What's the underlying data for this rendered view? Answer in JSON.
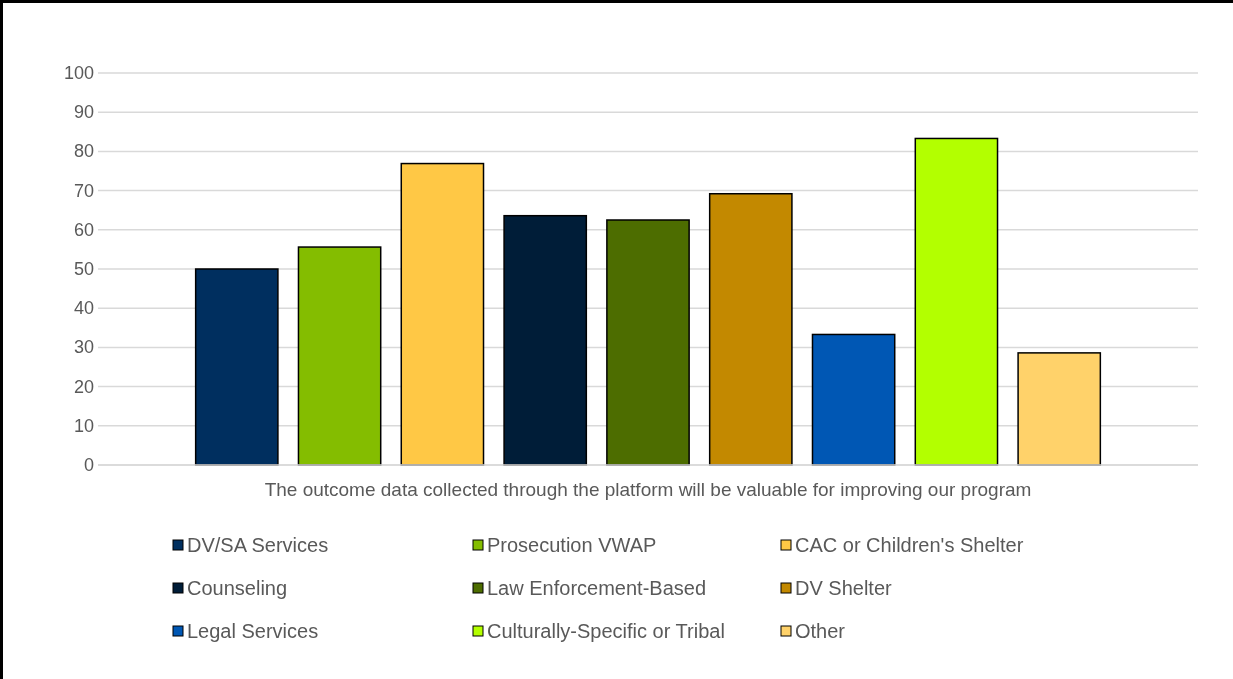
{
  "chart_data": {
    "type": "bar",
    "categories": [
      "The outcome data collected through the platform will be valuable for improving our program"
    ],
    "series": [
      {
        "name": "DV/SA Services",
        "color": "#002f5f",
        "values": [
          50
        ]
      },
      {
        "name": "Prosecution VWAP",
        "color": "#84bd00",
        "values": [
          55.6
        ]
      },
      {
        "name": "CAC or Children's Shelter",
        "color": "#ffc845",
        "values": [
          76.9
        ]
      },
      {
        "name": "Counseling",
        "color": "#001d38",
        "values": [
          63.6
        ]
      },
      {
        "name": "Law Enforcement-Based",
        "color": "#4d6d00",
        "values": [
          62.5
        ]
      },
      {
        "name": "DV Shelter",
        "color": "#c38900",
        "values": [
          69.2
        ]
      },
      {
        "name": "Legal Services",
        "color": "#0057b4",
        "values": [
          33.3
        ]
      },
      {
        "name": "Culturally-Specific or Tribal",
        "color": "#b3ff00",
        "values": [
          83.3
        ]
      },
      {
        "name": "Other",
        "color": "#ffd26a",
        "values": [
          28.6
        ]
      }
    ],
    "ylim": [
      0,
      100
    ],
    "yticks": [
      0,
      10,
      20,
      30,
      40,
      50,
      60,
      70,
      80,
      90,
      100
    ],
    "grid": "y",
    "legend": "bottom"
  }
}
